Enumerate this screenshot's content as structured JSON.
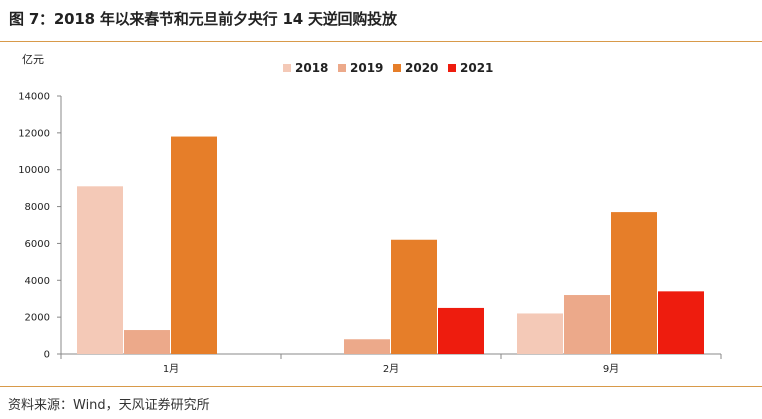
{
  "title": "图 7：2018 年以来春节和元旦前夕央行 14 天逆回购投放",
  "source": "资料来源：Wind，天风证券研究所",
  "chart_data": {
    "type": "bar",
    "unit": "亿元",
    "categories": [
      "1月",
      "2月",
      "9月"
    ],
    "series": [
      {
        "name": "2018",
        "color": "#f4c9b7",
        "values": [
          9100,
          null,
          2200
        ]
      },
      {
        "name": "2019",
        "color": "#eca98a",
        "values": [
          1300,
          800,
          3200
        ]
      },
      {
        "name": "2020",
        "color": "#e67e29",
        "values": [
          11800,
          6200,
          7700
        ]
      },
      {
        "name": "2021",
        "color": "#ee1c0e",
        "values": [
          null,
          2500,
          3400
        ]
      }
    ],
    "ylim": [
      0,
      14000
    ],
    "yticks": [
      0,
      2000,
      4000,
      6000,
      8000,
      10000,
      12000,
      14000
    ],
    "legend_position": "top-center",
    "grid": false
  }
}
